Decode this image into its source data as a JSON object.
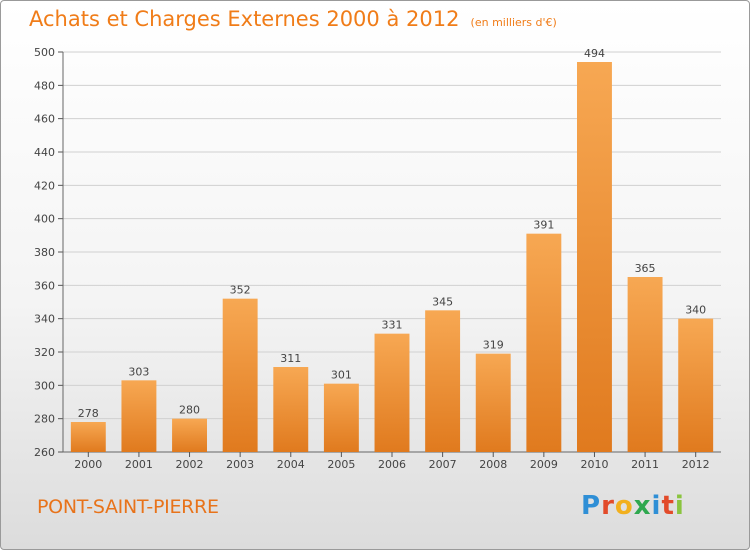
{
  "title": "Achats et Charges Externes 2000 à 2012",
  "subtitle": "(en milliers d'€)",
  "location_label": "PONT-SAINT-PIERRE",
  "logo": {
    "letters": [
      "P",
      "r",
      "o",
      "x",
      "i",
      "t",
      "i"
    ],
    "colors": [
      "#2f8fd6",
      "#e24b2a",
      "#f2b01e",
      "#2fa84f",
      "#2f8fd6",
      "#e24b2a",
      "#8ac43f"
    ]
  },
  "colors": {
    "bar_light": "#f7a853",
    "bar_dark": "#e07a1e",
    "accent": "#f07c18"
  },
  "chart_data": {
    "type": "bar",
    "categories": [
      "2000",
      "2001",
      "2002",
      "2003",
      "2004",
      "2005",
      "2006",
      "2007",
      "2008",
      "2009",
      "2010",
      "2011",
      "2012"
    ],
    "values": [
      278,
      303,
      280,
      352,
      311,
      301,
      331,
      345,
      319,
      391,
      494,
      365,
      340
    ],
    "ylim": [
      260,
      500
    ],
    "yticks": [
      260,
      280,
      300,
      320,
      340,
      360,
      380,
      400,
      420,
      440,
      460,
      480,
      500
    ],
    "grid": true,
    "title": "Achats et Charges Externes 2000 à 2012",
    "subtitle": "(en milliers d'€)",
    "xlabel": "",
    "ylabel": ""
  }
}
